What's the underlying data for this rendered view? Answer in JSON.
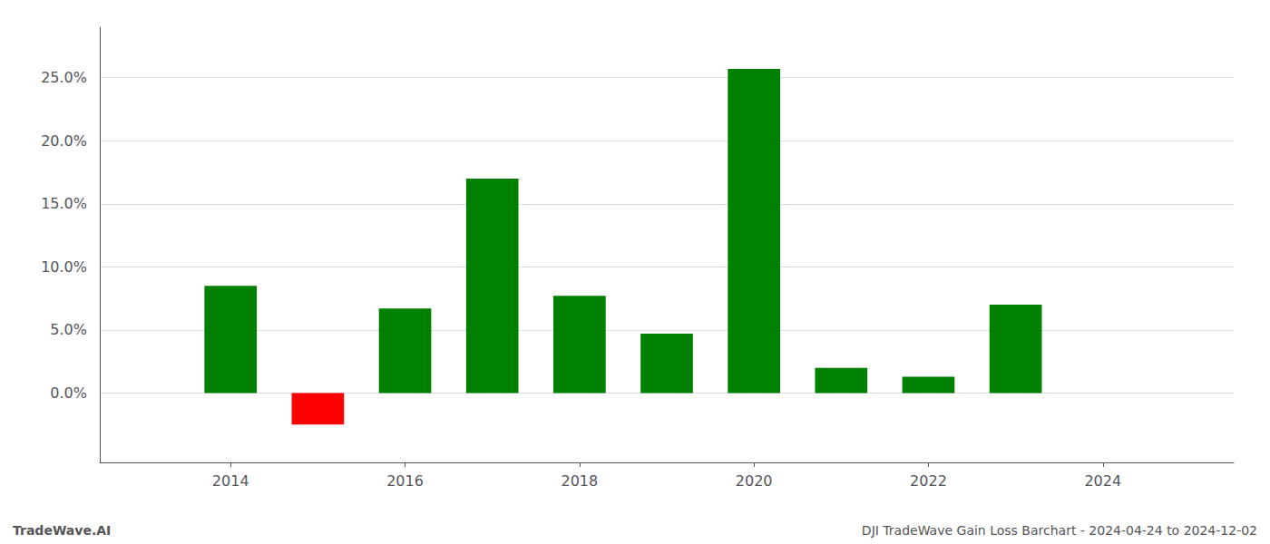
{
  "chart_data": {
    "type": "bar",
    "x": [
      2014,
      2015,
      2016,
      2017,
      2018,
      2019,
      2020,
      2021,
      2022,
      2023
    ],
    "values": [
      0.085,
      -0.025,
      0.067,
      0.17,
      0.077,
      0.047,
      0.257,
      0.02,
      0.013,
      0.07
    ],
    "colors": [
      "#008000",
      "#ff0000",
      "#008000",
      "#008000",
      "#008000",
      "#008000",
      "#008000",
      "#008000",
      "#008000",
      "#008000"
    ],
    "xlim": [
      2012.5,
      2025.5
    ],
    "xticks": [
      2014,
      2016,
      2018,
      2020,
      2022,
      2024
    ],
    "ylim": [
      -0.055,
      0.29
    ],
    "yticks": [
      {
        "value": 0.0,
        "label": "0.0%"
      },
      {
        "value": 0.05,
        "label": "5.0%"
      },
      {
        "value": 0.1,
        "label": "10.0%"
      },
      {
        "value": 0.15,
        "label": "15.0%"
      },
      {
        "value": 0.2,
        "label": "20.0%"
      },
      {
        "value": 0.25,
        "label": "25.0%"
      }
    ],
    "grid": true,
    "annotations": [
      "TradeWave.AI",
      "DJI TradeWave Gain Loss Barchart - 2024-04-24 to 2024-12-02"
    ]
  }
}
